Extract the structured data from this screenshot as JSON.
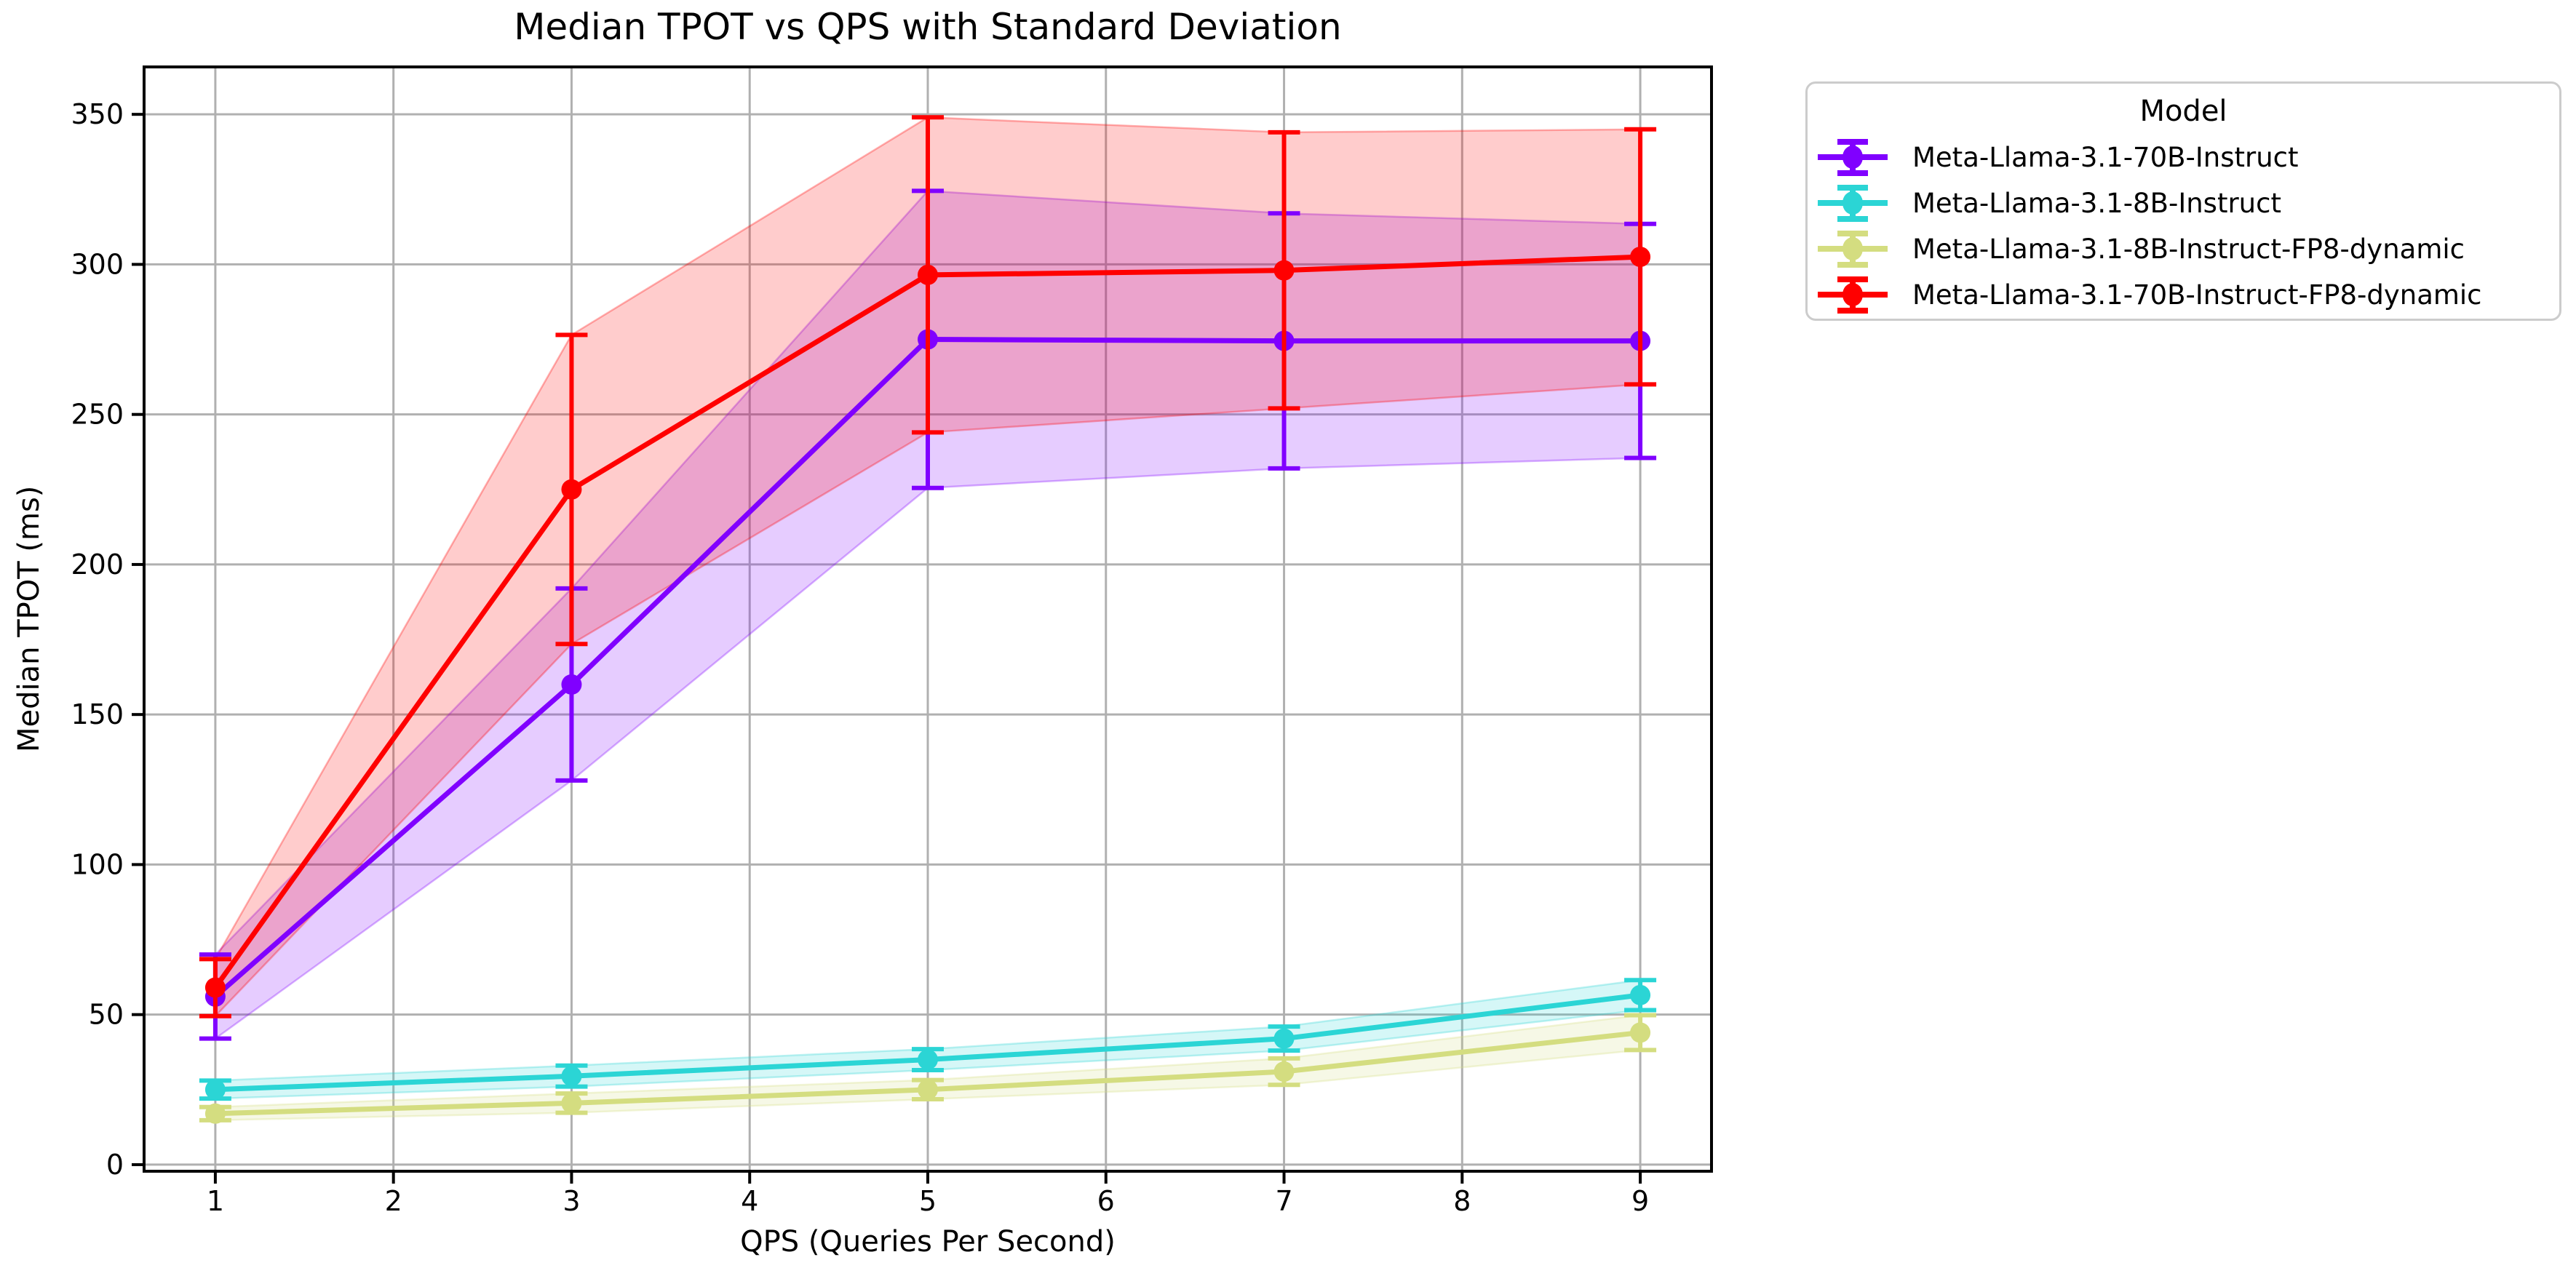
{
  "chart_data": {
    "type": "line",
    "title": "Median TPOT vs QPS with Standard Deviation",
    "xlabel": "QPS (Queries Per Second)",
    "ylabel": "Median TPOT (ms)",
    "x": [
      1,
      3,
      5,
      7,
      9
    ],
    "xticks": [
      "1",
      "2",
      "3",
      "4",
      "5",
      "6",
      "7",
      "8",
      "9"
    ],
    "xtick_values": [
      1,
      2,
      3,
      4,
      5,
      6,
      7,
      8,
      9
    ],
    "yticks": [
      "0",
      "50",
      "100",
      "150",
      "200",
      "250",
      "300",
      "350"
    ],
    "ytick_values": [
      0,
      50,
      100,
      150,
      200,
      250,
      300,
      350
    ],
    "xlim": [
      0.6,
      9.4
    ],
    "ylim": [
      -2.2,
      365.8
    ],
    "grid": true,
    "grid_color": "#b0b0b0",
    "spine_color": "#000000",
    "band_opacity": 0.2,
    "error_style": "vertical error bars with caps = standard deviation",
    "legend": {
      "title": "Model",
      "position": "outside upper right"
    },
    "series": [
      {
        "name": "Meta-Llama-3.1-70B-Instruct",
        "color": "#8000ff",
        "median": [
          56,
          160,
          275,
          274.5,
          274.5
        ],
        "std": [
          14,
          32,
          49.5,
          42.5,
          39
        ]
      },
      {
        "name": "Meta-Llama-3.1-8B-Instruct",
        "color": "#2bd5d5",
        "median": [
          25,
          29.5,
          35,
          42,
          56.5
        ],
        "std": [
          3,
          3.5,
          3.5,
          4,
          5
        ]
      },
      {
        "name": "Meta-Llama-3.1-8B-Instruct-FP8-dynamic",
        "color": "#d4dd80",
        "median": [
          17,
          20.5,
          25,
          31,
          44
        ],
        "std": [
          2.2,
          3.2,
          3.2,
          4.4,
          5.8
        ]
      },
      {
        "name": "Meta-Llama-3.1-70B-Instruct-FP8-dynamic",
        "color": "#ff0000",
        "median": [
          59,
          225,
          296.5,
          298,
          302.5
        ],
        "std": [
          9.5,
          51.5,
          52.5,
          46,
          42.5
        ]
      }
    ]
  }
}
